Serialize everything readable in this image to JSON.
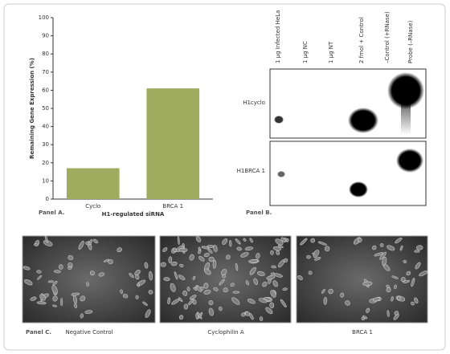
{
  "chart_data": {
    "type": "bar",
    "categories": [
      "Cyclo",
      "BRCA 1"
    ],
    "values": [
      17,
      61
    ],
    "color": "#9fab5e",
    "ylim": [
      0,
      100
    ],
    "yticks": [
      0,
      10,
      20,
      30,
      40,
      50,
      60,
      70,
      80,
      90,
      100
    ],
    "y_label": "Remaining Gene Expression (%)",
    "x_label": "H1-regulated siRNA",
    "panel_label": "Panel A."
  },
  "blot": {
    "panel_label": "Panel B.",
    "columns": [
      "1 µg Infected HeLa",
      "1 µg NC",
      "1 µg NT",
      "2 fmol + Control",
      "–Control (+RNase)",
      "Probe (–RNase)"
    ],
    "rows": [
      "H1cyclo",
      "H1BRCA 1"
    ]
  },
  "micrographs": {
    "panel_label": "Panel C.",
    "captions": [
      "Negative Control",
      "Cyclophilin A",
      "BRCA 1"
    ]
  }
}
